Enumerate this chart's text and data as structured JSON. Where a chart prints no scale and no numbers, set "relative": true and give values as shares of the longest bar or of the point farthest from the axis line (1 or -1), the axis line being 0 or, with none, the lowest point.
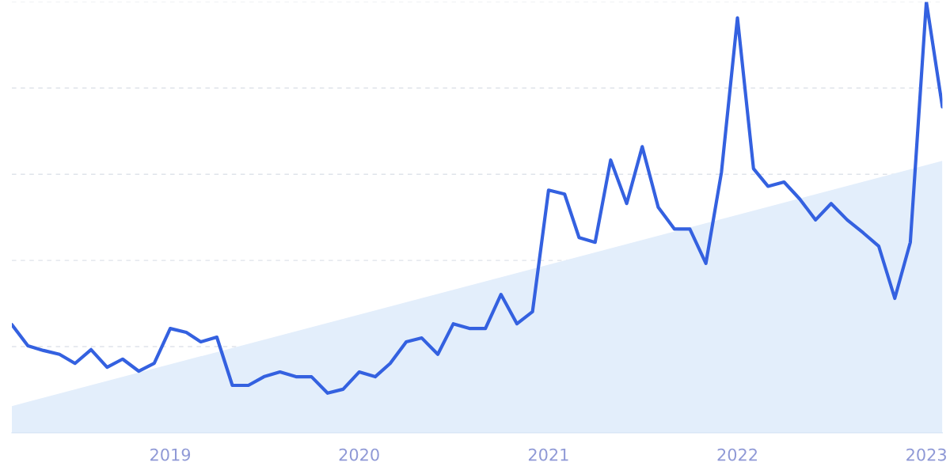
{
  "chart_data": {
    "type": "line",
    "relative": true,
    "grid": "y",
    "line_style": "solid",
    "xlim": [
      "2018-03",
      "2023-02"
    ],
    "xticks": [
      "2019",
      "2020",
      "2021",
      "2022",
      "2023"
    ],
    "series": [
      {
        "type": "area",
        "color": "#e3eefb",
        "x": [
          "2018-03",
          "2023-02"
        ],
        "values": [
          0.062,
          0.631
        ]
      },
      {
        "color": "#3461e0",
        "x": [
          "2018-03",
          "2018-04",
          "2018-05",
          "2018-06",
          "2018-07",
          "2018-08",
          "2018-09",
          "2018-10",
          "2018-11",
          "2018-12",
          "2019-01",
          "2019-02",
          "2019-03",
          "2019-04",
          "2019-05",
          "2019-06",
          "2019-07",
          "2019-08",
          "2019-09",
          "2019-10",
          "2019-11",
          "2019-12",
          "2020-01",
          "2020-02",
          "2020-03",
          "2020-04",
          "2020-05",
          "2020-06",
          "2020-07",
          "2020-08",
          "2020-09",
          "2020-10",
          "2020-11",
          "2020-12",
          "2021-01",
          "2021-02",
          "2021-03",
          "2021-04",
          "2021-05",
          "2021-06",
          "2021-07",
          "2021-08",
          "2021-09",
          "2021-10",
          "2021-11",
          "2021-12",
          "2022-01",
          "2022-02",
          "2022-03",
          "2022-04",
          "2022-05",
          "2022-06",
          "2022-07",
          "2022-08",
          "2022-09",
          "2022-10",
          "2022-11",
          "2022-12",
          "2023-01",
          "2023-02"
        ],
        "values": [
          0.251,
          0.202,
          0.191,
          0.182,
          0.161,
          0.193,
          0.152,
          0.171,
          0.143,
          0.161,
          0.242,
          0.233,
          0.211,
          0.222,
          0.11,
          0.11,
          0.13,
          0.141,
          0.13,
          0.13,
          0.092,
          0.101,
          0.141,
          0.13,
          0.161,
          0.211,
          0.22,
          0.182,
          0.253,
          0.242,
          0.242,
          0.321,
          0.253,
          0.281,
          0.563,
          0.554,
          0.453,
          0.442,
          0.633,
          0.532,
          0.664,
          0.523,
          0.473,
          0.473,
          0.393,
          0.604,
          0.963,
          0.613,
          0.572,
          0.582,
          0.543,
          0.494,
          0.532,
          0.494,
          0.464,
          0.433,
          0.312,
          0.442,
          1.0,
          0.756
        ]
      }
    ]
  }
}
